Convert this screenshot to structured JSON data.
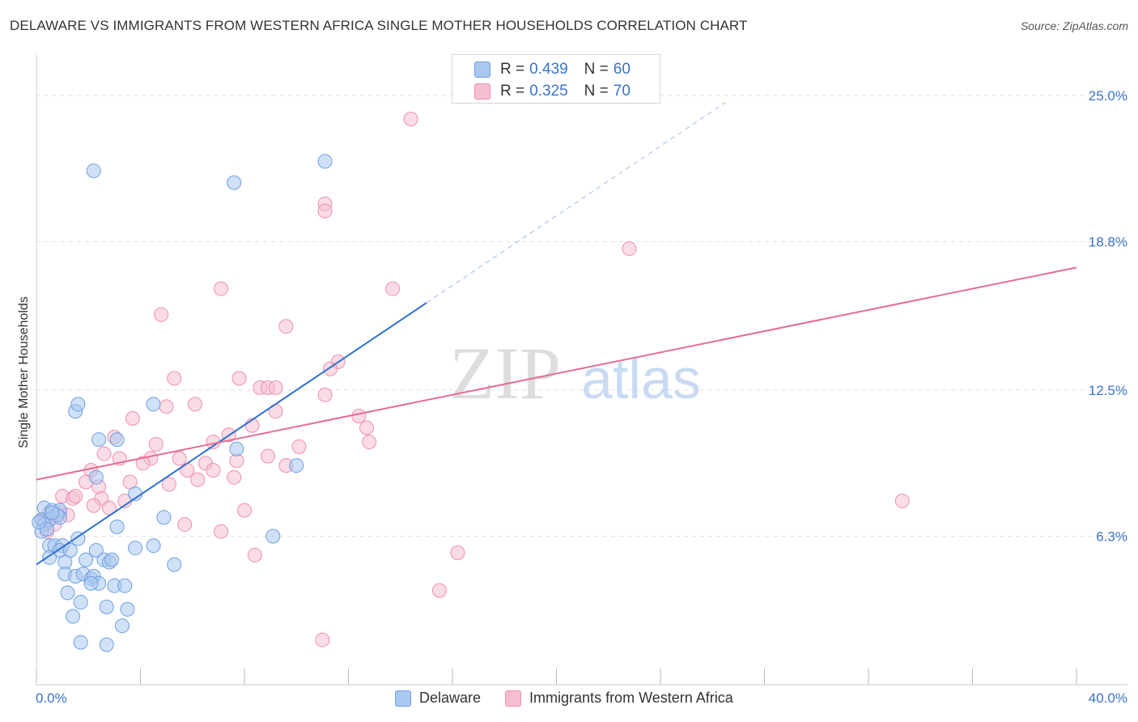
{
  "title": "DELAWARE VS IMMIGRANTS FROM WESTERN AFRICA SINGLE MOTHER HOUSEHOLDS CORRELATION CHART",
  "source": "Source: ZipAtlas.com",
  "watermark": {
    "zip": "ZIP",
    "atlas": "atlas"
  },
  "legend_box": {
    "rows": [
      {
        "r_label": "R =",
        "r_value": "0.439",
        "n_label": "N =",
        "n_value": "60"
      },
      {
        "r_label": "R =",
        "r_value": "0.325",
        "n_label": "N =",
        "n_value": "70"
      }
    ]
  },
  "legend_bottom": [
    "Delaware",
    "Immigrants from Western Africa"
  ],
  "colors": {
    "blue_fill": "#a9c8f0",
    "blue_stroke": "#6f9fe0",
    "blue_line": "#2e6fd0",
    "pink_fill": "#f6bfd0",
    "pink_stroke": "#ee8fae",
    "pink_line": "#e56c94",
    "axis_label": "#3a73c8",
    "grid": "#e2e2e2"
  },
  "chart_data": {
    "type": "scatter",
    "title": "DELAWARE VS IMMIGRANTS FROM WESTERN AFRICA SINGLE MOTHER HOUSEHOLDS CORRELATION CHART",
    "xlabel": "",
    "ylabel": "Single Mother Households",
    "xlim": [
      0,
      40
    ],
    "ylim": [
      0,
      26.3
    ],
    "x_tick_labels": [
      "0.0%",
      "40.0%"
    ],
    "y_ticks": [
      6.3,
      12.5,
      18.8,
      25.0
    ],
    "y_tick_labels": [
      "6.3%",
      "12.5%",
      "18.8%",
      "25.0%"
    ],
    "grid": true,
    "legend_placement": "top-center",
    "series": [
      {
        "name": "Delaware",
        "color": "#a9c8f0",
        "trend": {
          "x": [
            0,
            15
          ],
          "y": [
            5.1,
            16.2
          ],
          "dashed_to": [
            26.5,
            24.7
          ]
        },
        "points": [
          [
            2.2,
            21.8
          ],
          [
            7.6,
            21.3
          ],
          [
            11.1,
            22.2
          ],
          [
            1.5,
            11.6
          ],
          [
            1.6,
            11.9
          ],
          [
            4.5,
            11.9
          ],
          [
            2.4,
            10.4
          ],
          [
            3.1,
            10.4
          ],
          [
            7.7,
            10.0
          ],
          [
            10.0,
            9.3
          ],
          [
            2.3,
            8.8
          ],
          [
            3.8,
            8.1
          ],
          [
            0.3,
            7.5
          ],
          [
            0.6,
            7.4
          ],
          [
            0.9,
            7.4
          ],
          [
            0.2,
            7.0
          ],
          [
            0.5,
            7.0
          ],
          [
            0.9,
            7.1
          ],
          [
            0.3,
            6.8
          ],
          [
            0.2,
            6.5
          ],
          [
            3.1,
            6.7
          ],
          [
            4.9,
            7.1
          ],
          [
            9.1,
            6.3
          ],
          [
            1.6,
            6.2
          ],
          [
            0.5,
            5.9
          ],
          [
            0.7,
            5.9
          ],
          [
            1.0,
            5.9
          ],
          [
            0.9,
            5.7
          ],
          [
            1.3,
            5.7
          ],
          [
            2.3,
            5.7
          ],
          [
            3.8,
            5.8
          ],
          [
            4.5,
            5.9
          ],
          [
            0.5,
            5.4
          ],
          [
            1.1,
            5.2
          ],
          [
            1.9,
            5.3
          ],
          [
            2.6,
            5.3
          ],
          [
            2.8,
            5.2
          ],
          [
            2.9,
            5.3
          ],
          [
            5.3,
            5.1
          ],
          [
            1.1,
            4.7
          ],
          [
            1.5,
            4.6
          ],
          [
            1.8,
            4.7
          ],
          [
            2.1,
            4.5
          ],
          [
            2.2,
            4.6
          ],
          [
            2.4,
            4.3
          ],
          [
            2.1,
            4.3
          ],
          [
            3.0,
            4.2
          ],
          [
            3.4,
            4.2
          ],
          [
            1.2,
            3.9
          ],
          [
            1.7,
            3.5
          ],
          [
            2.7,
            3.3
          ],
          [
            3.5,
            3.2
          ],
          [
            1.4,
            2.9
          ],
          [
            3.3,
            2.5
          ],
          [
            1.7,
            1.8
          ],
          [
            2.7,
            1.7
          ],
          [
            0.4,
            6.6
          ],
          [
            0.1,
            6.9
          ],
          [
            0.8,
            7.2
          ],
          [
            0.6,
            7.3
          ]
        ]
      },
      {
        "name": "Immigrants from Western Africa",
        "color": "#f6bfd0",
        "trend": {
          "x": [
            0,
            40
          ],
          "y": [
            8.7,
            17.7
          ]
        },
        "points": [
          [
            14.4,
            24.0
          ],
          [
            11.1,
            20.4
          ],
          [
            11.1,
            20.1
          ],
          [
            22.8,
            18.5
          ],
          [
            7.1,
            16.8
          ],
          [
            13.7,
            16.8
          ],
          [
            4.8,
            15.7
          ],
          [
            9.6,
            15.2
          ],
          [
            11.6,
            13.7
          ],
          [
            11.3,
            13.4
          ],
          [
            5.3,
            13.0
          ],
          [
            7.8,
            13.0
          ],
          [
            8.6,
            12.6
          ],
          [
            8.9,
            12.6
          ],
          [
            9.2,
            12.6
          ],
          [
            11.1,
            12.3
          ],
          [
            5.0,
            11.8
          ],
          [
            6.1,
            11.9
          ],
          [
            9.2,
            11.6
          ],
          [
            12.4,
            11.4
          ],
          [
            3.7,
            11.3
          ],
          [
            12.7,
            10.9
          ],
          [
            8.3,
            11.0
          ],
          [
            3.0,
            10.5
          ],
          [
            4.6,
            10.2
          ],
          [
            6.8,
            10.3
          ],
          [
            7.4,
            10.6
          ],
          [
            10.1,
            10.1
          ],
          [
            12.8,
            10.3
          ],
          [
            2.6,
            9.8
          ],
          [
            3.2,
            9.6
          ],
          [
            4.4,
            9.6
          ],
          [
            5.5,
            9.6
          ],
          [
            4.1,
            9.4
          ],
          [
            6.5,
            9.4
          ],
          [
            7.7,
            9.5
          ],
          [
            8.9,
            9.7
          ],
          [
            9.6,
            9.3
          ],
          [
            2.1,
            9.1
          ],
          [
            5.8,
            9.1
          ],
          [
            6.8,
            9.1
          ],
          [
            1.9,
            8.6
          ],
          [
            3.6,
            8.6
          ],
          [
            5.1,
            8.5
          ],
          [
            6.2,
            8.7
          ],
          [
            7.6,
            8.8
          ],
          [
            2.4,
            8.4
          ],
          [
            1.0,
            8.0
          ],
          [
            1.4,
            7.9
          ],
          [
            1.5,
            8.0
          ],
          [
            2.5,
            7.9
          ],
          [
            3.4,
            7.8
          ],
          [
            2.2,
            7.6
          ],
          [
            2.8,
            7.5
          ],
          [
            8.0,
            7.4
          ],
          [
            33.3,
            7.8
          ],
          [
            0.5,
            7.3
          ],
          [
            0.9,
            7.3
          ],
          [
            1.2,
            7.2
          ],
          [
            0.6,
            7.1
          ],
          [
            0.3,
            6.9
          ],
          [
            0.7,
            6.8
          ],
          [
            5.7,
            6.8
          ],
          [
            7.1,
            6.5
          ],
          [
            0.4,
            6.5
          ],
          [
            16.2,
            5.6
          ],
          [
            8.4,
            5.5
          ],
          [
            15.5,
            4.0
          ],
          [
            11.0,
            1.9
          ],
          [
            0.2,
            7.0
          ]
        ]
      }
    ]
  }
}
